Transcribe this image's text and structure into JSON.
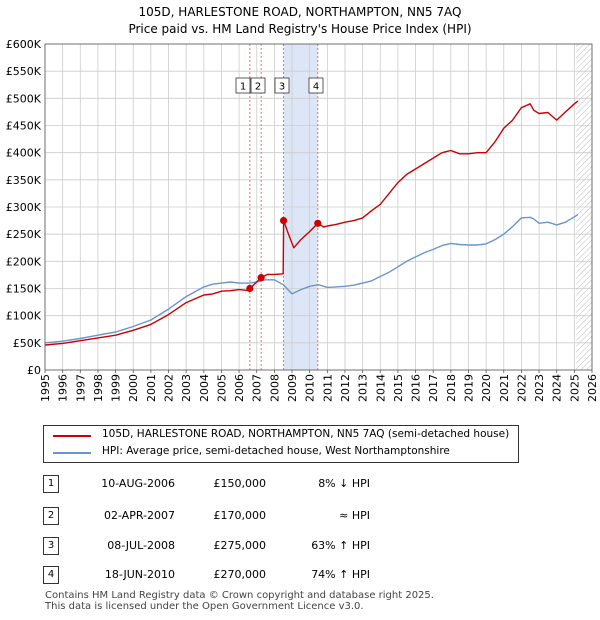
{
  "title_line1": "105D, HARLESTONE ROAD, NORTHAMPTON, NN5 7AQ",
  "title_line2": "Price paid vs. HM Land Registry's House Price Index (HPI)",
  "colors": {
    "property": "#cc0000",
    "hpi": "#6a94d0",
    "band": "#dde6f6",
    "grid": "#cccccc",
    "vline": "#d96b6b"
  },
  "legend": {
    "property": "105D, HARLESTONE ROAD, NORTHAMPTON, NN5 7AQ (semi-detached house)",
    "hpi": "HPI: Average price, semi-detached house, West Northamptonshire"
  },
  "transactions": [
    {
      "num": "1",
      "date": "10-AUG-2006",
      "price": "£150,000",
      "hpi": "8% ↓ HPI"
    },
    {
      "num": "2",
      "date": "02-APR-2007",
      "price": "£170,000",
      "hpi": "≈ HPI"
    },
    {
      "num": "3",
      "date": "08-JUL-2008",
      "price": "£275,000",
      "hpi": "63% ↑ HPI"
    },
    {
      "num": "4",
      "date": "18-JUN-2010",
      "price": "£270,000",
      "hpi": "74% ↑ HPI"
    }
  ],
  "footer_line1": "Contains HM Land Registry data © Crown copyright and database right 2025.",
  "footer_line2": "This data is licensed under the Open Government Licence v3.0.",
  "chart_data": {
    "type": "line",
    "title": "105D, HARLESTONE ROAD, NORTHAMPTON, NN5 7AQ — Price paid vs. HM Land Registry's House Price Index (HPI)",
    "xlabel": "",
    "ylabel": "",
    "xlim": [
      1995,
      2026
    ],
    "ylim": [
      0,
      600000
    ],
    "x_ticks": [
      1995,
      1996,
      1997,
      1998,
      1999,
      2000,
      2001,
      2002,
      2003,
      2004,
      2005,
      2006,
      2007,
      2008,
      2009,
      2010,
      2011,
      2012,
      2013,
      2014,
      2015,
      2016,
      2017,
      2018,
      2019,
      2020,
      2021,
      2022,
      2023,
      2024,
      2025,
      2026
    ],
    "y_ticks": [
      0,
      50000,
      100000,
      150000,
      200000,
      250000,
      300000,
      350000,
      400000,
      450000,
      500000,
      550000,
      600000
    ],
    "y_tick_labels": [
      "£0",
      "£50K",
      "£100K",
      "£150K",
      "£200K",
      "£250K",
      "£300K",
      "£350K",
      "£400K",
      "£450K",
      "£500K",
      "£550K",
      "£600K"
    ],
    "grid": true,
    "shaded_band": [
      2008.52,
      2010.46
    ],
    "hatched_future_from": 2025.1,
    "sales": [
      {
        "label": "1",
        "x": 2006.61,
        "y": 150000
      },
      {
        "label": "2",
        "x": 2007.25,
        "y": 170000
      },
      {
        "label": "3",
        "x": 2008.52,
        "y": 275000
      },
      {
        "label": "4",
        "x": 2010.46,
        "y": 270000
      }
    ],
    "series": [
      {
        "name": "105D, HARLESTONE ROAD, NORTHAMPTON, NN5 7AQ (semi-detached house)",
        "x": [
          1995.0,
          1996.0,
          1997.0,
          1998.0,
          1999.0,
          2000.0,
          2001.0,
          2002.0,
          2003.0,
          2004.0,
          2004.5,
          2005.0,
          2005.5,
          2006.0,
          2006.6,
          2006.61,
          2007.0,
          2007.25,
          2007.6,
          2008.0,
          2008.5,
          2008.52,
          2008.8,
          2009.1,
          2009.5,
          2010.0,
          2010.46,
          2010.8,
          2011.0,
          2011.5,
          2012.0,
          2012.5,
          2013.0,
          2013.5,
          2014.0,
          2014.5,
          2015.0,
          2015.5,
          2016.0,
          2016.5,
          2017.0,
          2017.5,
          2018.0,
          2018.5,
          2019.0,
          2019.5,
          2020.0,
          2020.5,
          2021.0,
          2021.5,
          2022.0,
          2022.5,
          2022.7,
          2023.0,
          2023.5,
          2024.0,
          2024.5,
          2025.0,
          2025.2
        ],
        "y": [
          46000,
          49000,
          54000,
          59000,
          64000,
          73000,
          84000,
          102000,
          124000,
          138000,
          140000,
          145000,
          146000,
          148000,
          146000,
          150000,
          162000,
          170000,
          176000,
          176000,
          177000,
          275000,
          250000,
          225000,
          240000,
          255000,
          270000,
          263000,
          265000,
          268000,
          272000,
          275000,
          280000,
          293000,
          305000,
          325000,
          345000,
          360000,
          370000,
          380000,
          390000,
          400000,
          404000,
          398000,
          398000,
          400000,
          400000,
          420000,
          445000,
          460000,
          483000,
          490000,
          478000,
          472000,
          474000,
          460000,
          475000,
          490000,
          495000
        ]
      },
      {
        "name": "HPI: Average price, semi-detached house, West Northamptonshire",
        "x": [
          1995.0,
          1996.0,
          1997.0,
          1998.0,
          1999.0,
          2000.0,
          2001.0,
          2002.0,
          2003.0,
          2004.0,
          2004.5,
          2005.0,
          2005.5,
          2006.0,
          2006.6,
          2007.0,
          2007.5,
          2008.0,
          2008.5,
          2009.0,
          2009.5,
          2010.0,
          2010.5,
          2011.0,
          2011.5,
          2012.0,
          2012.5,
          2013.0,
          2013.5,
          2014.0,
          2014.5,
          2015.0,
          2015.5,
          2016.0,
          2016.5,
          2017.0,
          2017.5,
          2018.0,
          2018.5,
          2019.0,
          2019.5,
          2020.0,
          2020.5,
          2021.0,
          2021.5,
          2022.0,
          2022.5,
          2022.7,
          2023.0,
          2023.5,
          2024.0,
          2024.5,
          2025.0,
          2025.2
        ],
        "y": [
          50000,
          53000,
          58000,
          64000,
          70000,
          80000,
          92000,
          112000,
          135000,
          153000,
          158000,
          160000,
          162000,
          160000,
          160000,
          162000,
          166000,
          166000,
          157000,
          140000,
          148000,
          154000,
          157000,
          152000,
          153000,
          154000,
          156000,
          160000,
          164000,
          172000,
          180000,
          190000,
          200000,
          208000,
          216000,
          222000,
          229000,
          233000,
          231000,
          230000,
          230000,
          232000,
          240000,
          250000,
          264000,
          280000,
          281000,
          278000,
          270000,
          272000,
          267000,
          272000,
          282000,
          286000
        ]
      }
    ]
  }
}
